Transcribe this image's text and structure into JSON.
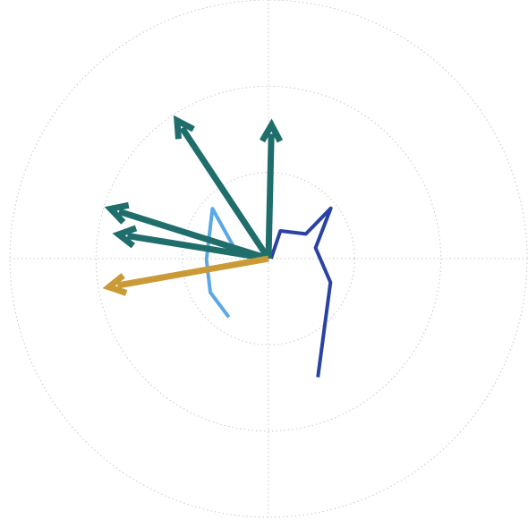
{
  "chart_data": {
    "type": "polar",
    "title": "",
    "rlim": [
      0,
      3
    ],
    "rings": [
      1,
      2,
      3
    ],
    "spokes_deg": [
      0,
      90,
      180,
      270
    ],
    "grid": true,
    "legend": "none",
    "colors": {
      "grid": "#c8c8c8",
      "arrow_green": "#1f6e6b",
      "arrow_gold": "#c99a36",
      "line_dark_blue": "#2a43a3",
      "line_light_blue": "#5aa8e6"
    },
    "arrows": [
      {
        "angle_deg": 88.7,
        "r": 1.55,
        "color": "arrow_green"
      },
      {
        "angle_deg": 123.5,
        "r": 1.92,
        "color": "arrow_green"
      },
      {
        "angle_deg": 162.5,
        "r": 1.92,
        "color": "arrow_green"
      },
      {
        "angle_deg": 170.8,
        "r": 1.76,
        "color": "arrow_green"
      },
      {
        "angle_deg": 190.1,
        "r": 1.88,
        "color": "arrow_gold"
      }
    ],
    "series": [
      {
        "color": "line_dark_blue",
        "points": [
          {
            "angle_deg": 0.0,
            "r": 0.03
          },
          {
            "angle_deg": 66.8,
            "r": 0.35
          },
          {
            "angle_deg": 33.4,
            "r": 0.52
          },
          {
            "angle_deg": 38.9,
            "r": 0.93
          },
          {
            "angle_deg": 12.8,
            "r": 0.56
          },
          {
            "angle_deg": -20.9,
            "r": 0.77
          },
          {
            "angle_deg": -67.4,
            "r": 1.49
          }
        ]
      },
      {
        "color": "line_light_blue",
        "points": [
          {
            "angle_deg": 180.0,
            "r": 0.03
          },
          {
            "angle_deg": 167.7,
            "r": 0.38
          },
          {
            "angle_deg": 138.3,
            "r": 0.87
          },
          {
            "angle_deg": 181.0,
            "r": 0.72
          },
          {
            "angle_deg": 210.1,
            "r": 0.78
          },
          {
            "angle_deg": 235.9,
            "r": 0.82
          }
        ]
      }
    ]
  }
}
